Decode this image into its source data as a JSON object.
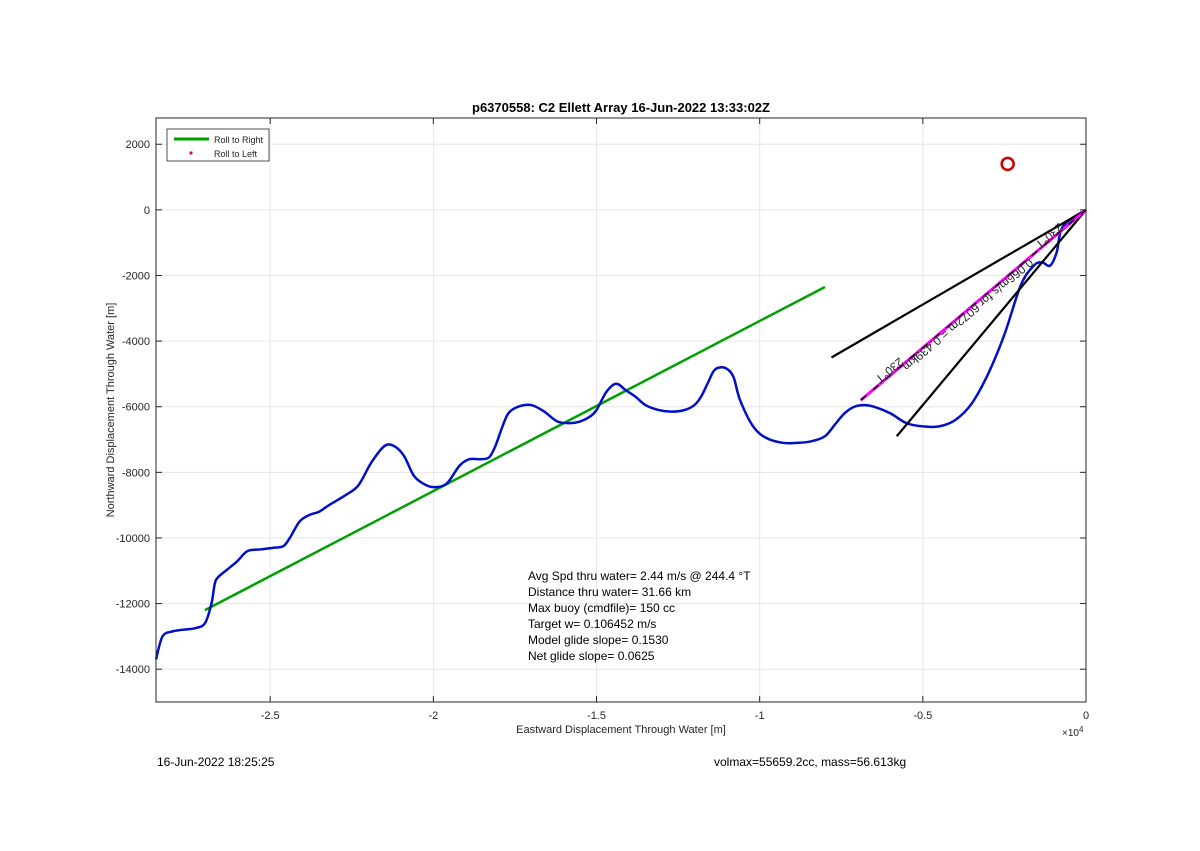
{
  "chart_data": {
    "type": "line",
    "title": "p6370558: C2 Ellett Array 16-Jun-2022 13:33:02Z",
    "xlabel": "Eastward Displacement Through Water [m]",
    "ylabel": "Northward Displacement Through Water [m]",
    "x_multiplier": "×10",
    "x_multiplier_exp": "4",
    "xlim": [
      -28500,
      0
    ],
    "ylim": [
      -15000,
      2800
    ],
    "x_ticks": [
      -25000,
      -20000,
      -15000,
      -10000,
      -5000,
      0
    ],
    "x_tick_labels": [
      "-2.5",
      "-2",
      "-1.5",
      "-1",
      "-0.5",
      "0"
    ],
    "y_ticks": [
      2000,
      0,
      -2000,
      -4000,
      -6000,
      -8000,
      -10000,
      -12000,
      -14000
    ],
    "y_tick_labels": [
      "2000",
      "0",
      "-2000",
      "-4000",
      "-6000",
      "-8000",
      "-10000",
      "-12000",
      "-14000"
    ],
    "grid": true,
    "legend": {
      "placement": "top-left",
      "entries": [
        {
          "label": "Roll to Right",
          "color": "#00a000",
          "style": "line"
        },
        {
          "label": "Roll to Left",
          "color": "#e0004a",
          "style": "dot"
        }
      ]
    },
    "series": [
      {
        "name": "Roll to Right",
        "color": "#00a000",
        "x": [
          -27000,
          -8000
        ],
        "y": [
          -12200,
          -2350
        ]
      },
      {
        "color": "#0010c8",
        "x": [
          0,
          -700,
          -900,
          -1100,
          -1350,
          -1600,
          -2000,
          -2500,
          -3000,
          -3500,
          -4000,
          -4500,
          -5000,
          -5500,
          -6000,
          -6500,
          -6800,
          -7100,
          -7400,
          -7700,
          -8000,
          -8400,
          -8800,
          -9300,
          -9800,
          -10200,
          -10600,
          -10800,
          -11000,
          -11200,
          -11400,
          -11600,
          -11800,
          -12000,
          -12300,
          -12700,
          -13100,
          -13500,
          -13800,
          -14100,
          -14400,
          -14700,
          -15000,
          -15200,
          -15500,
          -15800,
          -16200,
          -16600,
          -17000,
          -17400,
          -17700,
          -17900,
          -18100,
          -18300,
          -18600,
          -18900,
          -19200,
          -19600,
          -20000,
          -20300,
          -20600,
          -20900,
          -21200,
          -21500,
          -21900,
          -22300,
          -22700,
          -23200,
          -23500,
          -23800,
          -24100,
          -24400,
          -24600,
          -24900,
          -25300,
          -25700,
          -26000,
          -26300,
          -26600,
          -26700,
          -26800,
          -27000,
          -27300,
          -27700,
          -28000,
          -28300,
          -28500
        ],
        "y": [
          0,
          -500,
          -1300,
          -1700,
          -1600,
          -1700,
          -2300,
          -3800,
          -5000,
          -5900,
          -6400,
          -6600,
          -6600,
          -6500,
          -6200,
          -6000,
          -5950,
          -6000,
          -6200,
          -6550,
          -6900,
          -7050,
          -7100,
          -7100,
          -6950,
          -6600,
          -5800,
          -5100,
          -4850,
          -4800,
          -4900,
          -5300,
          -5700,
          -5950,
          -6100,
          -6150,
          -6100,
          -5950,
          -5700,
          -5500,
          -5300,
          -5550,
          -6100,
          -6300,
          -6450,
          -6500,
          -6450,
          -6150,
          -5950,
          -6000,
          -6200,
          -6650,
          -7200,
          -7550,
          -7600,
          -7600,
          -7800,
          -8350,
          -8450,
          -8350,
          -8100,
          -7500,
          -7200,
          -7200,
          -7700,
          -8400,
          -8700,
          -9000,
          -9200,
          -9300,
          -9500,
          -10000,
          -10250,
          -10300,
          -10350,
          -10400,
          -10700,
          -10950,
          -11200,
          -11400,
          -12000,
          -12600,
          -12750,
          -12800,
          -12850,
          -13000,
          -13700
        ]
      },
      {
        "color": "#000000",
        "x": [
          -7800,
          0
        ],
        "y": [
          -4500,
          0
        ]
      },
      {
        "color": "#000000",
        "x": [
          -5800,
          0
        ],
        "y": [
          -6900,
          0
        ]
      },
      {
        "color": "#ff00ff",
        "x": [
          -6900,
          0
        ],
        "y": [
          -5800,
          0
        ]
      }
    ],
    "marker": {
      "x": -2400,
      "y": 1400,
      "color": "#d00000"
    },
    "line_labels": [
      {
        "text": "230°T",
        "x": -1200,
        "y": -700
      },
      {
        "text": "230°T",
        "x": -6100,
        "y": -4800
      },
      {
        "text": "0.066m/s for 6072m = 0.439km",
        "x": -3700,
        "y": -3100
      }
    ],
    "annotations": [
      "Avg Spd thru water=  2.44 m/s @ 244.4 °T",
      "Distance thru water= 31.66 km",
      "Max buoy (cmdfile)= 150 cc",
      "Target w= 0.106452 m/s",
      "Model glide slope= 0.1530",
      "Net glide slope= 0.0625"
    ]
  },
  "footer": {
    "timestamp": "16-Jun-2022 18:25:25",
    "info": "volmax=55659.2cc, mass=56.613kg"
  }
}
